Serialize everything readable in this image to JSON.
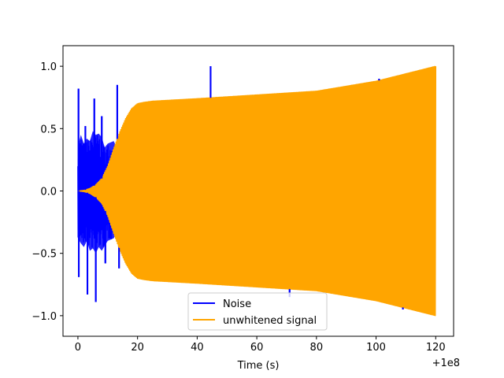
{
  "chart_data": {
    "type": "line",
    "title": "",
    "xlabel": "Time (s)",
    "ylabel": "",
    "x_offset_label": "+1e8",
    "xlim": [
      -5,
      126
    ],
    "ylim": [
      -1.165,
      1.165
    ],
    "x_ticks": [
      0,
      20,
      40,
      60,
      80,
      100,
      120
    ],
    "x_tick_labels": [
      "0",
      "20",
      "40",
      "60",
      "80",
      "100",
      "120"
    ],
    "y_ticks": [
      -1.0,
      -0.5,
      0.0,
      0.5,
      1.0
    ],
    "y_tick_labels": [
      "−1.0",
      "−0.5",
      "0.0",
      "0.5",
      "1.0"
    ],
    "grid": false,
    "legend_position": "bottom-center",
    "series": [
      {
        "name": "Noise",
        "color": "#0000ff",
        "envelope_upper": [
          [
            0,
            0.36
          ],
          [
            1,
            0.45
          ],
          [
            2,
            0.38
          ],
          [
            3,
            0.42
          ],
          [
            4,
            0.4
          ],
          [
            5,
            0.48
          ],
          [
            6,
            0.45
          ],
          [
            7,
            0.46
          ],
          [
            8,
            0.43
          ],
          [
            9,
            0.35
          ],
          [
            10,
            0.38
          ],
          [
            12,
            0.4
          ],
          [
            14,
            0.3
          ],
          [
            16,
            0.2
          ],
          [
            18,
            0.1
          ]
        ],
        "envelope_lower": [
          [
            0,
            -0.38
          ],
          [
            1,
            -0.42
          ],
          [
            2,
            -0.45
          ],
          [
            3,
            -0.4
          ],
          [
            4,
            -0.48
          ],
          [
            5,
            -0.46
          ],
          [
            6,
            -0.5
          ],
          [
            7,
            -0.45
          ],
          [
            8,
            -0.48
          ],
          [
            9,
            -0.44
          ],
          [
            10,
            -0.4
          ],
          [
            12,
            -0.38
          ],
          [
            14,
            -0.3
          ],
          [
            16,
            -0.2
          ],
          [
            18,
            -0.1
          ]
        ],
        "spikes": [
          [
            0.2,
            0.82
          ],
          [
            0.3,
            -0.69
          ],
          [
            2.5,
            0.52
          ],
          [
            3.2,
            -0.83
          ],
          [
            5.5,
            0.74
          ],
          [
            6.0,
            -0.89
          ],
          [
            8.0,
            0.6
          ],
          [
            9.2,
            -0.58
          ],
          [
            13.2,
            0.85
          ],
          [
            13.8,
            -0.62
          ],
          [
            17.0,
            0.38
          ],
          [
            23.0,
            -0.7
          ],
          [
            44.5,
            1.0
          ],
          [
            71.0,
            -0.85
          ],
          [
            101.0,
            0.9
          ],
          [
            109.0,
            -0.95
          ]
        ]
      },
      {
        "name": "unwhitened signal",
        "color": "#ffa500",
        "envelope_upper": [
          [
            0,
            0.0
          ],
          [
            2,
            0.005
          ],
          [
            4,
            0.02
          ],
          [
            6,
            0.05
          ],
          [
            8,
            0.1
          ],
          [
            10,
            0.2
          ],
          [
            12,
            0.34
          ],
          [
            14,
            0.47
          ],
          [
            16,
            0.58
          ],
          [
            18,
            0.66
          ],
          [
            20,
            0.7
          ],
          [
            22,
            0.71
          ],
          [
            25,
            0.72
          ],
          [
            40,
            0.74
          ],
          [
            60,
            0.77
          ],
          [
            80,
            0.8
          ],
          [
            100,
            0.88
          ],
          [
            120,
            1.0
          ]
        ],
        "envelope_lower": [
          [
            0,
            0.0
          ],
          [
            2,
            -0.005
          ],
          [
            4,
            -0.02
          ],
          [
            6,
            -0.05
          ],
          [
            8,
            -0.1
          ],
          [
            10,
            -0.2
          ],
          [
            12,
            -0.34
          ],
          [
            14,
            -0.47
          ],
          [
            16,
            -0.58
          ],
          [
            18,
            -0.66
          ],
          [
            20,
            -0.7
          ],
          [
            22,
            -0.71
          ],
          [
            25,
            -0.72
          ],
          [
            40,
            -0.74
          ],
          [
            60,
            -0.77
          ],
          [
            80,
            -0.8
          ],
          [
            100,
            -0.88
          ],
          [
            120,
            -1.0
          ]
        ]
      }
    ]
  }
}
